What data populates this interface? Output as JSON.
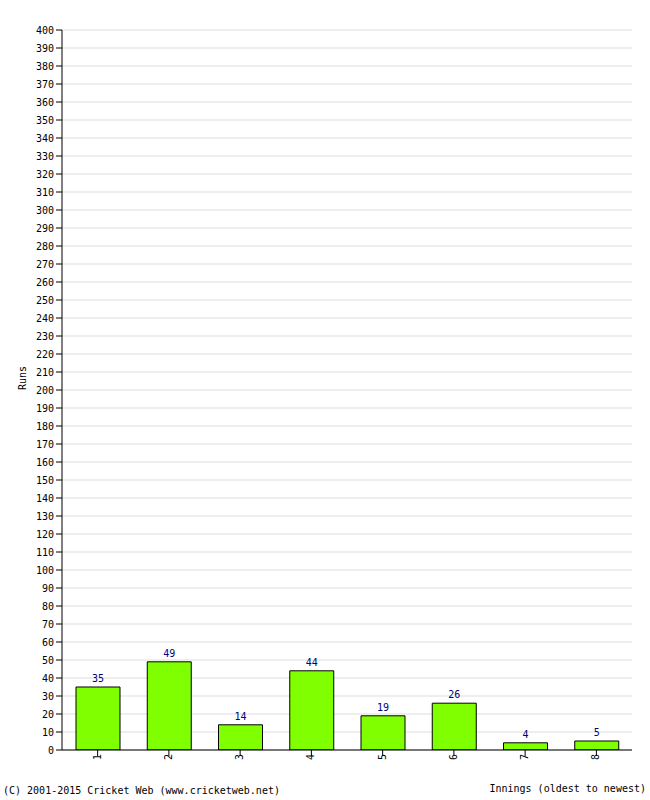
{
  "chart_data": {
    "type": "bar",
    "x_label": "Innings (oldest to newest)",
    "y_label": "Runs",
    "annotations": [
      "(C) 2001-2015 Cricket Web (www.cricketweb.net)"
    ],
    "categories": [
      "1",
      "2",
      "3",
      "4",
      "5",
      "6",
      "7",
      "8"
    ],
    "values": [
      35,
      49,
      14,
      44,
      19,
      26,
      4,
      5
    ],
    "color": "#80ff00",
    "ylim": [
      0,
      400
    ],
    "yticks": [
      0,
      10,
      20,
      30,
      40,
      50,
      60,
      70,
      80,
      90,
      100,
      110,
      120,
      130,
      140,
      150,
      160,
      170,
      180,
      190,
      200,
      210,
      220,
      230,
      240,
      250,
      260,
      270,
      280,
      290,
      300,
      310,
      320,
      330,
      340,
      350,
      360,
      370,
      380,
      390,
      400
    ],
    "grid": true,
    "data_labels": true
  }
}
